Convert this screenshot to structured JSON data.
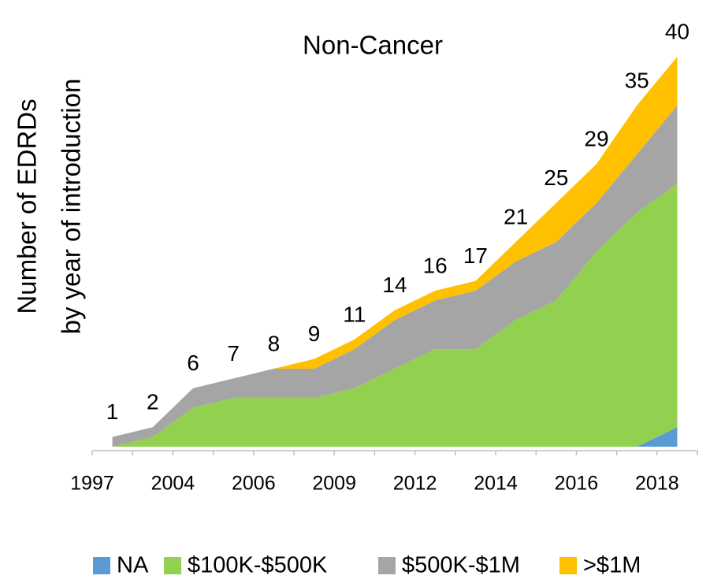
{
  "chart_data": {
    "type": "stacked_area",
    "title": "Non-Cancer",
    "y_label": [
      "Number of EDRDs",
      "by year of introduction"
    ],
    "categories": [
      "1997",
      null,
      "2004",
      null,
      "2006",
      null,
      "2009",
      null,
      "2012",
      null,
      "2014",
      null,
      "2016",
      null,
      "2018"
    ],
    "series": [
      {
        "name": "NA",
        "color": "#5b9bd5",
        "values": [
          0,
          0,
          0,
          0,
          0,
          0,
          0,
          0,
          0,
          0,
          0,
          0,
          0,
          0,
          2
        ]
      },
      {
        "name": "$100K-$500K",
        "color": "#92d050",
        "values": [
          0,
          1,
          4,
          5,
          5,
          5,
          6,
          8,
          10,
          10,
          13,
          15,
          20,
          24,
          25
        ]
      },
      {
        "name": "$500K-$1M",
        "color": "#a5a5a5",
        "values": [
          1,
          1,
          2,
          2,
          3,
          3,
          4,
          5,
          5,
          6,
          6,
          6,
          5,
          6,
          8
        ]
      },
      {
        "name": ">$1M",
        "color": "#ffc000",
        "values": [
          0,
          0,
          0,
          0,
          0,
          1,
          1,
          1,
          1,
          1,
          2,
          4,
          4,
          5,
          5
        ]
      }
    ],
    "totals": [
      1,
      2,
      6,
      7,
      8,
      9,
      11,
      14,
      16,
      17,
      21,
      25,
      29,
      35,
      40
    ],
    "ylim": [
      0,
      40
    ]
  }
}
